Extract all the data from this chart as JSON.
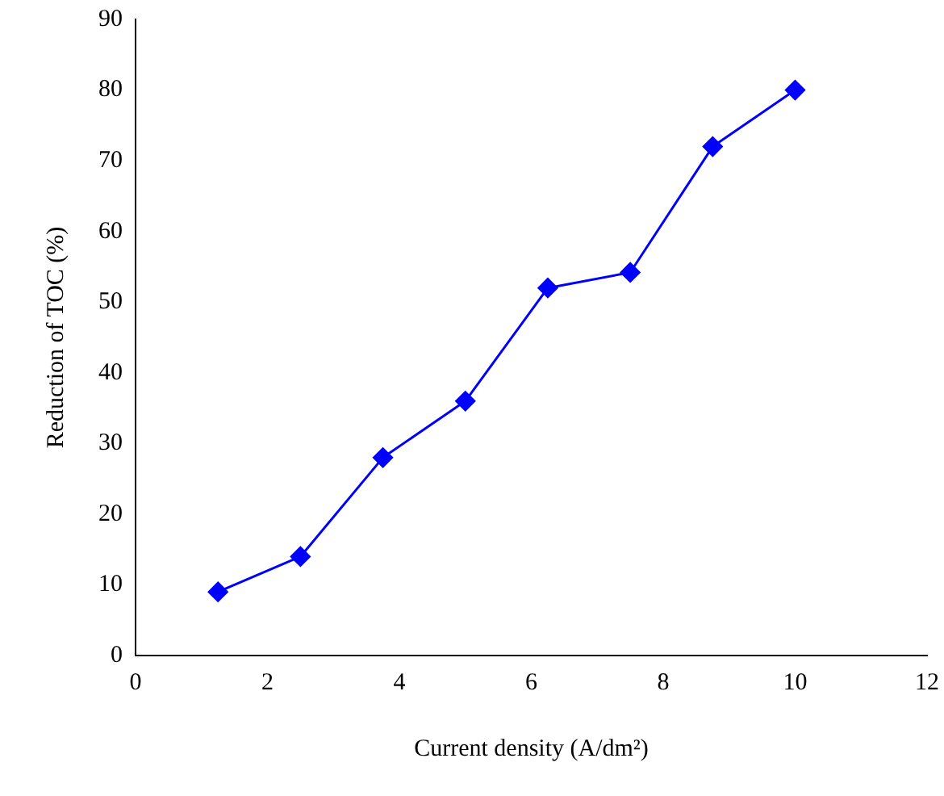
{
  "chart_data": {
    "type": "line",
    "xlabel": "Current density (A/dm²)",
    "ylabel": "Reduction of TOC (%)",
    "x": [
      1.25,
      2.5,
      3.75,
      5,
      6.25,
      7.5,
      8.75,
      10
    ],
    "series": [
      {
        "color": "#0000ff",
        "values": [
          9,
          14,
          28,
          36,
          52,
          54.2,
          72,
          80
        ]
      }
    ],
    "xlim": [
      0,
      12
    ],
    "xticks": [
      0,
      2,
      4,
      6,
      8,
      10,
      12
    ],
    "ylim": [
      0,
      90
    ],
    "yticks": [
      0,
      10,
      20,
      30,
      40,
      50,
      60,
      70,
      80,
      90
    ],
    "grid": false,
    "legend": false,
    "marker": "diamond",
    "line_style": "solid"
  }
}
